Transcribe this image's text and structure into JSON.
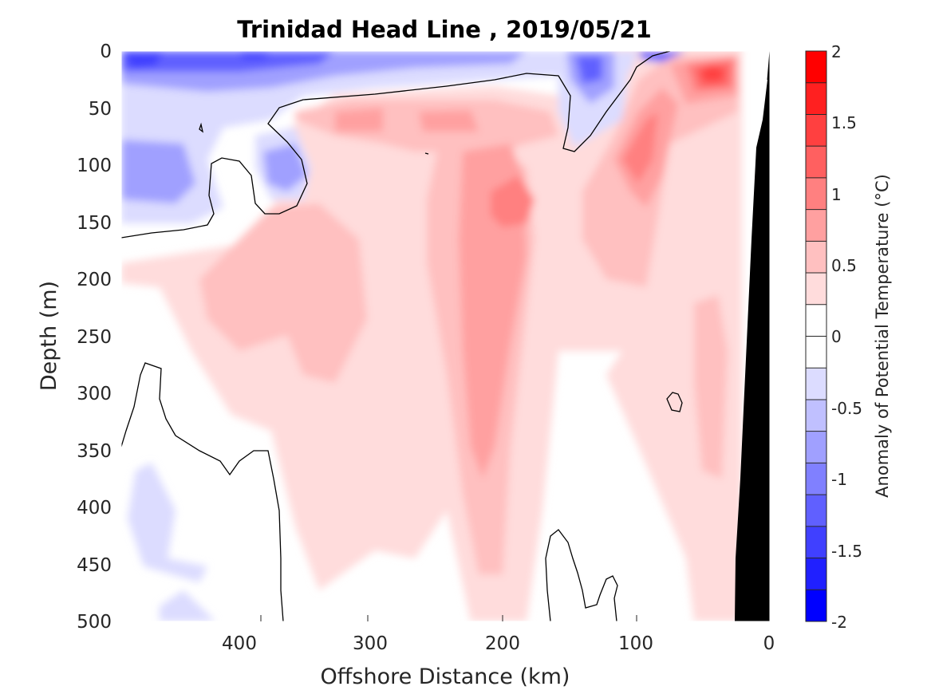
{
  "chart_data": {
    "type": "heatmap",
    "title": "Trinidad Head Line , 2019/05/21",
    "xlabel": "Offshore Distance (km)",
    "ylabel": "Depth (m)",
    "colorbar_label": "Anomaly of Potential Temperature (°C)",
    "xlim": [
      490,
      0
    ],
    "ylim": [
      0,
      500
    ],
    "x_reversed": true,
    "y_reversed": true,
    "xticks": [
      "400",
      "300",
      "200",
      "100",
      "0"
    ],
    "yticks": [
      "0",
      "50",
      "100",
      "150",
      "200",
      "250",
      "300",
      "350",
      "400",
      "450",
      "500"
    ],
    "colorbar": {
      "range": [
        -2,
        2
      ],
      "step": 0.25,
      "ticks": [
        "2",
        "1.5",
        "1",
        "0.5",
        "0",
        "-0.5",
        "-1",
        "-1.5",
        "-2"
      ],
      "colors_low_to_high": [
        "#0000ff",
        "#2020ff",
        "#4040ff",
        "#6060ff",
        "#8080ff",
        "#a0a0ff",
        "#c0c0ff",
        "#dcdcff",
        "#ffffff",
        "#ffffff",
        "#ffdcdc",
        "#ffc0c0",
        "#ffa0a0",
        "#ff8080",
        "#ff6060",
        "#ff4040",
        "#ff2020",
        "#ff0000"
      ]
    },
    "zero_contour": "black",
    "bathymetry": "black",
    "features": [
      {
        "name": "surface cold anomaly offshore",
        "x": [
          490,
          300
        ],
        "depth": [
          0,
          40
        ],
        "value": -1.2
      },
      {
        "name": "cold patch",
        "x": [
          490,
          430
        ],
        "depth": [
          80,
          150
        ],
        "value": -0.8
      },
      {
        "name": "cold patch",
        "x": [
          400,
          350
        ],
        "depth": [
          70,
          140
        ],
        "value": -0.8
      },
      {
        "name": "nearshore cold core",
        "x": [
          150,
          120
        ],
        "depth": [
          0,
          50
        ],
        "value": -1.0
      },
      {
        "name": "surface warm core",
        "x": [
          60,
          25
        ],
        "depth": [
          5,
          40
        ],
        "value": 1.6
      },
      {
        "name": "warm tongue",
        "x": [
          240,
          170
        ],
        "depth": [
          50,
          380
        ],
        "value": 0.9
      },
      {
        "name": "warm band",
        "x": [
          120,
          70
        ],
        "depth": [
          60,
          200
        ],
        "value": 0.9
      },
      {
        "name": "warm patch",
        "x": [
          430,
          340
        ],
        "depth": [
          150,
          280
        ],
        "value": 0.6
      },
      {
        "name": "deep cold patch",
        "x": [
          480,
          420
        ],
        "depth": [
          360,
          500
        ],
        "value": -0.3
      }
    ]
  }
}
